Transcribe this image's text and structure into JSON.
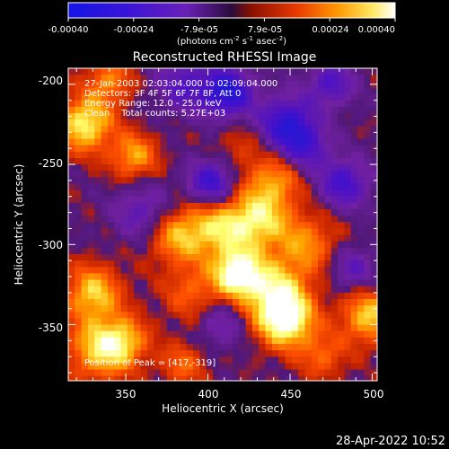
{
  "colorbar": {
    "tick_labels": [
      "-0.00040",
      "-0.00024",
      "-7.9e-05",
      "7.9e-05",
      "0.00024",
      "0.00040"
    ],
    "unit_parts": [
      "(photons cm",
      "-2",
      " s",
      "-1",
      " asec",
      "-2",
      ")"
    ]
  },
  "title": "Reconstructed RHESSI Image",
  "annotations": {
    "time_range": "27-Jan-2003 02:03:04.000 to 02:09:04.000",
    "detectors": "Detectors: 3F 4F 5F 6F 7F 8F, Att 0",
    "energy": "Energy Range: 12.0 - 25.0 keV",
    "clean": "Clean    Total counts: 5.27E+03",
    "peak": "Position of Peak = [417,-319]"
  },
  "axes": {
    "xlabel": "Heliocentric X (arcsec)",
    "ylabel": "Heliocentric Y (arcsec)",
    "xticks": [
      "350",
      "400",
      "450",
      "500"
    ],
    "yticks": [
      "-200",
      "-250",
      "-300",
      "-350"
    ]
  },
  "footer": {
    "datetime": "28-Apr-2022 10:52"
  },
  "colors": {
    "background": "#000000",
    "colormap": [
      "#1818d8",
      "#4a10c8",
      "#7020a0",
      "#501878",
      "#c02000",
      "#ff5000",
      "#ffa800",
      "#ffff70",
      "#ffffff"
    ]
  },
  "chart_data": {
    "type": "heatmap",
    "title": "Reconstructed RHESSI Image",
    "xlabel": "Heliocentric X (arcsec)",
    "ylabel": "Heliocentric Y (arcsec)",
    "xlim": [
      315,
      503
    ],
    "ylim": [
      -385,
      -190
    ],
    "x_ticks": [
      350,
      400,
      450,
      500
    ],
    "y_ticks": [
      -200,
      -250,
      -300,
      -350
    ],
    "color_range": [
      -0.0004,
      0.0004
    ],
    "peak": [
      417,
      -319
    ],
    "blobs": [
      {
        "x": 418,
        "y": -318,
        "value": 0.0004,
        "r": 10
      },
      {
        "x": 440,
        "y": -330,
        "value": 0.0003,
        "r": 14
      },
      {
        "x": 448,
        "y": -348,
        "value": 0.00036,
        "r": 12
      },
      {
        "x": 405,
        "y": -290,
        "value": 0.00026,
        "r": 14
      },
      {
        "x": 430,
        "y": -285,
        "value": 0.00028,
        "r": 13
      },
      {
        "x": 440,
        "y": -260,
        "value": 0.00022,
        "r": 12
      },
      {
        "x": 460,
        "y": -300,
        "value": 0.0002,
        "r": 14
      },
      {
        "x": 380,
        "y": -295,
        "value": 0.00022,
        "r": 12
      },
      {
        "x": 390,
        "y": -330,
        "value": 0.00016,
        "r": 12
      },
      {
        "x": 330,
        "y": -330,
        "value": 0.00028,
        "r": 12
      },
      {
        "x": 335,
        "y": -365,
        "value": 0.0003,
        "r": 14
      },
      {
        "x": 350,
        "y": -360,
        "value": 0.00018,
        "r": 10
      },
      {
        "x": 325,
        "y": -225,
        "value": 0.00034,
        "r": 12
      },
      {
        "x": 355,
        "y": -245,
        "value": 0.00024,
        "r": 10
      },
      {
        "x": 385,
        "y": -375,
        "value": 0.00016,
        "r": 10
      },
      {
        "x": 470,
        "y": -370,
        "value": 0.00016,
        "r": 10
      },
      {
        "x": 498,
        "y": -345,
        "value": 0.00028,
        "r": 12
      },
      {
        "x": 340,
        "y": -198,
        "value": 0.0002,
        "r": 10
      },
      {
        "x": 420,
        "y": -238,
        "value": 0.0001,
        "r": 10
      },
      {
        "x": 412,
        "y": -205,
        "value": -0.00035,
        "r": 11
      },
      {
        "x": 448,
        "y": -225,
        "value": -0.00032,
        "r": 12
      },
      {
        "x": 402,
        "y": -262,
        "value": -0.0003,
        "r": 10
      },
      {
        "x": 385,
        "y": -200,
        "value": -0.0002,
        "r": 12
      },
      {
        "x": 483,
        "y": -262,
        "value": -0.00026,
        "r": 11
      },
      {
        "x": 360,
        "y": -280,
        "value": -0.00018,
        "r": 12
      },
      {
        "x": 475,
        "y": -200,
        "value": -0.00022,
        "r": 10
      },
      {
        "x": 408,
        "y": -350,
        "value": -0.00015,
        "r": 10
      },
      {
        "x": 488,
        "y": -315,
        "value": -0.00018,
        "r": 10
      },
      {
        "x": 460,
        "y": -240,
        "value": -0.0002,
        "r": 10
      }
    ]
  }
}
